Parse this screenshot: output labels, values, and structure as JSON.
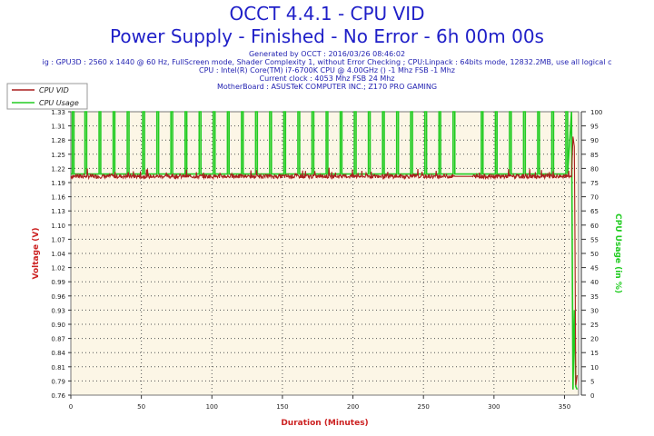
{
  "header": {
    "title": "OCCT 4.4.1 - CPU VID",
    "subtitle": "Power Supply - Finished - No Error - 6h 00m 00s",
    "info": [
      "Generated by OCCT : 2016/03/26 08:46:02",
      "ig : GPU3D : 2560 x 1440 @ 60 Hz, FullScreen mode, Shader Complexity 1, without Error Checking ; CPU:Linpack : 64bits mode, 12832.2MB, use all logical c",
      "CPU : Intel(R) Core(TM) i7-6700K CPU @ 4.00GHz () -1 Mhz FSB -1 Mhz",
      "Current clock : 4053 Mhz FSB 24 Mhz",
      "MotherBoard : ASUSTeK COMPUTER INC.; Z170 PRO GAMING"
    ]
  },
  "chart_data": {
    "type": "line",
    "xlabel": "Duration (Minutes)",
    "ylabel": "Voltage (V)",
    "y2label": "CPU Usage (in %)",
    "xlim": [
      0,
      360
    ],
    "ylim": [
      0.76,
      1.33
    ],
    "y2lim": [
      0,
      100
    ],
    "xticks": [
      0,
      50,
      100,
      150,
      200,
      250,
      300,
      350
    ],
    "yticks": [
      "0.76",
      "0.79",
      "0.81",
      "0.84",
      "0.87",
      "0.90",
      "0.93",
      "0.96",
      "0.99",
      "1.02",
      "1.04",
      "1.07",
      "1.10",
      "1.13",
      "1.16",
      "1.19",
      "1.22",
      "1.25",
      "1.28",
      "1.31",
      "1.33"
    ],
    "y2ticks": [
      0,
      5,
      10,
      15,
      20,
      25,
      30,
      35,
      40,
      45,
      50,
      55,
      60,
      65,
      70,
      75,
      80,
      85,
      90,
      95,
      100
    ],
    "grid": true,
    "legend_position": "top-left",
    "series": [
      {
        "name": "CPU VID",
        "color": "#aa1f1f",
        "axis": "left",
        "x": [
          0,
          5,
          10,
          20,
          30,
          40,
          50,
          60,
          70,
          80,
          90,
          100,
          110,
          120,
          130,
          140,
          150,
          160,
          170,
          180,
          190,
          200,
          210,
          220,
          230,
          240,
          250,
          260,
          270,
          272,
          285,
          290,
          300,
          310,
          320,
          330,
          340,
          350,
          355,
          356,
          357,
          358,
          359
        ],
        "values": [
          1.2,
          1.2,
          1.2,
          1.2,
          1.2,
          1.2,
          1.2,
          1.2,
          1.2,
          1.2,
          1.2,
          1.2,
          1.2,
          1.2,
          1.2,
          1.2,
          1.2,
          1.2,
          1.2,
          1.2,
          1.2,
          1.2,
          1.2,
          1.2,
          1.2,
          1.2,
          1.2,
          1.2,
          1.2,
          1.2,
          1.2,
          1.2,
          1.2,
          1.2,
          1.2,
          1.2,
          1.2,
          1.2,
          1.2,
          1.28,
          1.26,
          0.78,
          0.8
        ]
      },
      {
        "name": "CPU Usage",
        "color": "#22cc22",
        "axis": "right",
        "baseline": 78,
        "peak": 100,
        "spike_x": [
          1,
          10,
          20,
          30,
          40,
          51,
          61,
          71,
          81,
          91,
          101,
          111,
          121,
          131,
          141,
          151,
          161,
          171,
          181,
          191,
          201,
          211,
          221,
          231,
          241,
          251,
          261,
          271,
          291,
          301,
          311,
          321,
          331,
          341,
          351
        ],
        "tail": {
          "x": [
            355,
            356,
            357,
            358,
            359
          ],
          "values": [
            100,
            2,
            30,
            3,
            2
          ]
        }
      }
    ]
  }
}
